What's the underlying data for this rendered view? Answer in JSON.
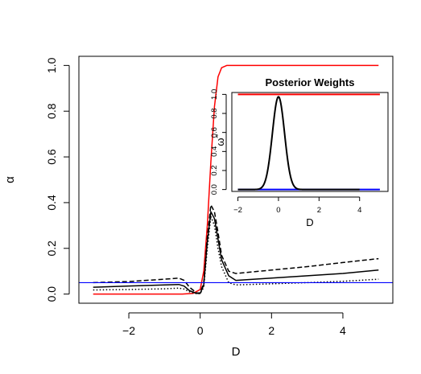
{
  "chart_data": [
    {
      "type": "line",
      "title": "",
      "xlabel": "D",
      "ylabel": "α",
      "xlim": [
        -3.4,
        5.4
      ],
      "ylim": [
        -0.04,
        1.04
      ],
      "xticks": [
        -2,
        0,
        2,
        4
      ],
      "yticks": [
        0.0,
        0.2,
        0.4,
        0.6,
        0.8,
        1.0
      ],
      "xtick_labels": [
        "−2",
        "0",
        "2",
        "4"
      ],
      "ytick_labels": [
        "0.0",
        "0.2",
        "0.4",
        "0.6",
        "0.8",
        "1.0"
      ],
      "grid": false,
      "series": [
        {
          "color": "#ff0000",
          "style": "solid",
          "points": [
            [
              -3,
              0
            ],
            [
              -0.5,
              0
            ],
            [
              -0.2,
              0.003
            ],
            [
              0,
              0.02
            ],
            [
              0.1,
              0.1
            ],
            [
              0.2,
              0.3
            ],
            [
              0.3,
              0.58
            ],
            [
              0.4,
              0.82
            ],
            [
              0.5,
              0.95
            ],
            [
              0.6,
              0.99
            ],
            [
              0.75,
              1.0
            ],
            [
              5,
              1.0
            ]
          ]
        },
        {
          "color": "#000000",
          "style": "solid",
          "points": [
            [
              -3,
              0.03
            ],
            [
              -2,
              0.035
            ],
            [
              -1,
              0.04
            ],
            [
              -0.6,
              0.042
            ],
            [
              -0.45,
              0.035
            ],
            [
              -0.3,
              0.015
            ],
            [
              -0.1,
              0.003
            ],
            [
              0,
              0.003
            ],
            [
              0.1,
              0.04
            ],
            [
              0.2,
              0.23
            ],
            [
              0.3,
              0.36
            ],
            [
              0.4,
              0.33
            ],
            [
              0.5,
              0.24
            ],
            [
              0.6,
              0.15
            ],
            [
              0.8,
              0.08
            ],
            [
              1,
              0.06
            ],
            [
              2,
              0.07
            ],
            [
              3,
              0.08
            ],
            [
              4,
              0.09
            ],
            [
              5,
              0.105
            ]
          ]
        },
        {
          "color": "#000000",
          "style": "dashed",
          "points": [
            [
              -3,
              0.05
            ],
            [
              -2,
              0.055
            ],
            [
              -1,
              0.065
            ],
            [
              -0.6,
              0.07
            ],
            [
              -0.45,
              0.06
            ],
            [
              -0.3,
              0.03
            ],
            [
              -0.1,
              0.005
            ],
            [
              0,
              0.005
            ],
            [
              0.1,
              0.05
            ],
            [
              0.2,
              0.25
            ],
            [
              0.3,
              0.39
            ],
            [
              0.4,
              0.36
            ],
            [
              0.5,
              0.27
            ],
            [
              0.6,
              0.17
            ],
            [
              0.8,
              0.1
            ],
            [
              1,
              0.09
            ],
            [
              2,
              0.105
            ],
            [
              3,
              0.12
            ],
            [
              4,
              0.138
            ],
            [
              5,
              0.155
            ]
          ]
        },
        {
          "color": "#000000",
          "style": "dotted",
          "points": [
            [
              -3,
              0.018
            ],
            [
              -2,
              0.02
            ],
            [
              -1,
              0.023
            ],
            [
              -0.6,
              0.026
            ],
            [
              -0.45,
              0.022
            ],
            [
              -0.3,
              0.01
            ],
            [
              -0.1,
              0.002
            ],
            [
              0,
              0.002
            ],
            [
              0.1,
              0.03
            ],
            [
              0.2,
              0.2
            ],
            [
              0.3,
              0.34
            ],
            [
              0.4,
              0.3
            ],
            [
              0.5,
              0.2
            ],
            [
              0.6,
              0.12
            ],
            [
              0.8,
              0.05
            ],
            [
              1,
              0.04
            ],
            [
              2,
              0.045
            ],
            [
              3,
              0.05
            ],
            [
              4,
              0.056
            ],
            [
              5,
              0.065
            ]
          ]
        },
        {
          "color": "#0000ff",
          "style": "solid",
          "points": [
            [
              -3.4,
              0.05
            ],
            [
              5.4,
              0.05
            ]
          ]
        }
      ]
    },
    {
      "type": "line",
      "title": "Posterior Weights",
      "xlabel": "D",
      "ylabel": "ω̃",
      "xlim": [
        -2.3,
        5.4
      ],
      "ylim": [
        -0.02,
        1.02
      ],
      "xticks": [
        -2,
        0,
        2,
        4
      ],
      "yticks": [
        0.0,
        0.2,
        0.4,
        0.6,
        0.8,
        1.0
      ],
      "xtick_labels": [
        "−2",
        "0",
        "2",
        "4"
      ],
      "ytick_labels": [
        "0.0",
        "0.2",
        "0.4",
        "0.6",
        "0.8",
        "1.0"
      ],
      "grid": false,
      "series": [
        {
          "color": "#ff0000",
          "style": "solid",
          "points": [
            [
              -2,
              1.0
            ],
            [
              5,
              1.0
            ]
          ]
        },
        {
          "color": "#0000ff",
          "style": "solid",
          "points": [
            [
              -2,
              0
            ],
            [
              5,
              0
            ]
          ]
        },
        {
          "color": "#000000",
          "style": "solid",
          "gaussian": {
            "mu": 0.0,
            "sigma": 0.3,
            "peak": 0.975
          },
          "points": [
            [
              -2,
              0
            ],
            [
              -0.9,
              0.01
            ],
            [
              -0.6,
              0.13
            ],
            [
              -0.3,
              0.59
            ],
            [
              0,
              0.975
            ],
            [
              0.3,
              0.59
            ],
            [
              0.6,
              0.13
            ],
            [
              0.9,
              0.01
            ],
            [
              5,
              0
            ]
          ]
        }
      ]
    }
  ]
}
